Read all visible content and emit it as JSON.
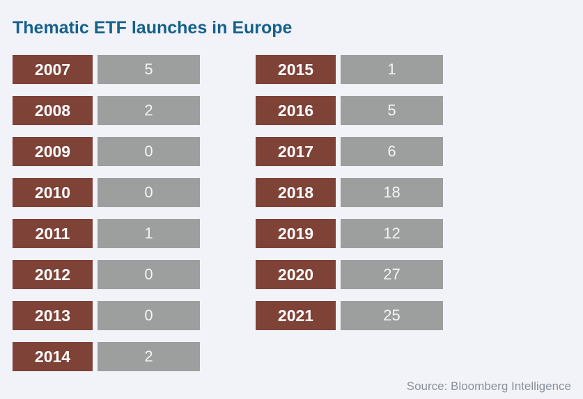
{
  "title": "Thematic ETF launches in Europe",
  "source": "Source: Bloomberg Intelligence",
  "colors": {
    "background": "#F1F3F8",
    "title_text": "#15618C",
    "year_box": "#7F4237",
    "value_box": "#9D9F9E",
    "year_text": "#FFFFFF",
    "value_text": "#F3F4F3",
    "source_text": "#8B919C"
  },
  "chart_data": {
    "type": "table",
    "title": "Thematic ETF launches in Europe",
    "categories": [
      "2007",
      "2008",
      "2009",
      "2010",
      "2011",
      "2012",
      "2013",
      "2014",
      "2015",
      "2016",
      "2017",
      "2018",
      "2019",
      "2020",
      "2021"
    ],
    "values": [
      5,
      2,
      0,
      0,
      1,
      0,
      0,
      2,
      1,
      5,
      6,
      18,
      12,
      27,
      25
    ],
    "layout": "two columns of year/value label boxes; years 2007-2014 left, 2015-2021 right",
    "source": "Bloomberg Intelligence"
  },
  "columns": [
    {
      "rows": [
        {
          "year": "2007",
          "value": "5"
        },
        {
          "year": "2008",
          "value": "2"
        },
        {
          "year": "2009",
          "value": "0"
        },
        {
          "year": "2010",
          "value": "0"
        },
        {
          "year": "2011",
          "value": "1"
        },
        {
          "year": "2012",
          "value": "0"
        },
        {
          "year": "2013",
          "value": "0"
        },
        {
          "year": "2014",
          "value": "2"
        }
      ]
    },
    {
      "rows": [
        {
          "year": "2015",
          "value": "1"
        },
        {
          "year": "2016",
          "value": "5"
        },
        {
          "year": "2017",
          "value": "6"
        },
        {
          "year": "2018",
          "value": "18"
        },
        {
          "year": "2019",
          "value": "12"
        },
        {
          "year": "2020",
          "value": "27"
        },
        {
          "year": "2021",
          "value": "25"
        }
      ]
    }
  ]
}
